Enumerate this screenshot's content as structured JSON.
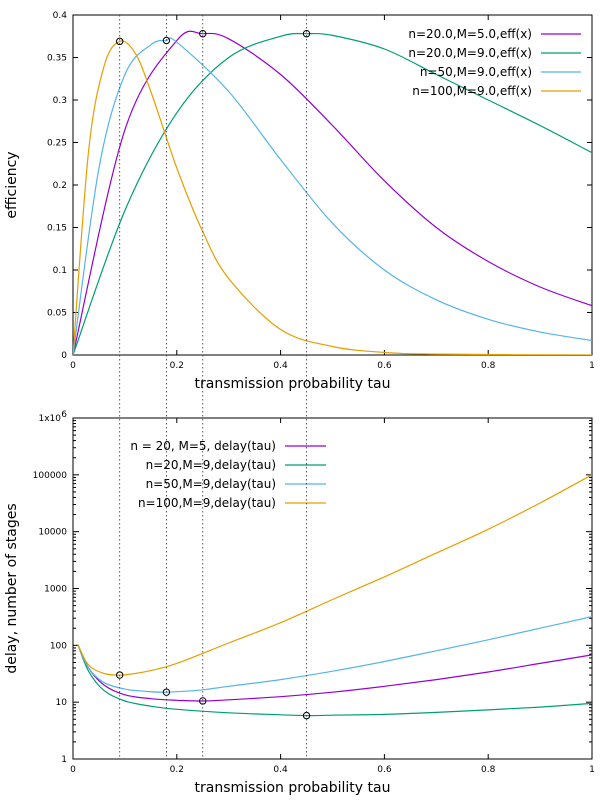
{
  "colors": {
    "purple": "#9400d3",
    "green": "#009e73",
    "cyan": "#56b4e9",
    "orange": "#e69f00"
  },
  "chart_data": [
    {
      "type": "line",
      "xlabel": "transmission probability tau",
      "ylabel": "efficiency",
      "xlim": [
        0,
        1
      ],
      "ylim": [
        0,
        0.4
      ],
      "xticks": [
        "0",
        "0.2",
        "0.4",
        "0.6",
        "0.8",
        "1"
      ],
      "yticks": [
        "0",
        "0.05",
        "0.1",
        "0.15",
        "0.2",
        "0.25",
        "0.3",
        "0.35",
        "0.4"
      ],
      "grid": false,
      "legend": "top-right",
      "series": [
        {
          "name": "n=20.0,M=5.0,eff(x)",
          "color": "purple",
          "x": [
            0,
            0.1,
            0.2,
            0.25,
            0.3,
            0.4,
            0.5,
            0.6,
            0.7,
            0.8,
            0.9,
            1
          ],
          "y": [
            0,
            0.265,
            0.37,
            0.378,
            0.372,
            0.33,
            0.27,
            0.205,
            0.15,
            0.11,
            0.08,
            0.058
          ]
        },
        {
          "name": "n=20.0,M=9.0,eff(x)",
          "color": "green",
          "x": [
            0,
            0.1,
            0.2,
            0.3,
            0.4,
            0.45,
            0.5,
            0.6,
            0.7,
            0.8,
            0.9,
            1
          ],
          "y": [
            0,
            0.17,
            0.285,
            0.35,
            0.375,
            0.378,
            0.376,
            0.36,
            0.33,
            0.3,
            0.27,
            0.238
          ]
        },
        {
          "name": "n=50,M=9.0,eff(x)",
          "color": "cyan",
          "x": [
            0,
            0.05,
            0.1,
            0.15,
            0.18,
            0.2,
            0.3,
            0.4,
            0.5,
            0.6,
            0.7,
            0.8,
            0.9,
            1
          ],
          "y": [
            0,
            0.22,
            0.33,
            0.365,
            0.37,
            0.368,
            0.31,
            0.23,
            0.155,
            0.1,
            0.065,
            0.042,
            0.027,
            0.017
          ]
        },
        {
          "name": "n=100,M=9.0,eff(x)",
          "color": "orange",
          "x": [
            0,
            0.03,
            0.06,
            0.09,
            0.12,
            0.15,
            0.2,
            0.25,
            0.3,
            0.4,
            0.5,
            0.6,
            0.7,
            1
          ],
          "y": [
            0,
            0.24,
            0.34,
            0.369,
            0.355,
            0.31,
            0.22,
            0.145,
            0.09,
            0.03,
            0.01,
            0.003,
            0.001,
            0
          ]
        }
      ],
      "markers": [
        {
          "x": 0.09,
          "y": 0.369
        },
        {
          "x": 0.18,
          "y": 0.37
        },
        {
          "x": 0.25,
          "y": 0.378
        },
        {
          "x": 0.45,
          "y": 0.378
        }
      ]
    },
    {
      "type": "line",
      "xlabel": "transmission probability tau",
      "ylabel": "delay, number of stages",
      "xlim": [
        0,
        1
      ],
      "ylim": [
        1,
        1000000
      ],
      "yscale": "log",
      "xticks": [
        "0",
        "0.2",
        "0.4",
        "0.6",
        "0.8",
        "1"
      ],
      "yticks": [
        "1",
        "10",
        "100",
        "1000",
        "10000",
        "100000",
        "1x10"
      ],
      "ytick_top_exponent": "6",
      "grid": false,
      "legend": "top-left",
      "series": [
        {
          "name": "n = 20, M=5, delay(tau)",
          "color": "purple",
          "x": [
            0.01,
            0.03,
            0.06,
            0.1,
            0.15,
            0.2,
            0.25,
            0.3,
            0.4,
            0.5,
            0.6,
            0.7,
            0.8,
            0.9,
            1
          ],
          "y": [
            100,
            40,
            20,
            13.5,
            11.5,
            10.8,
            10.5,
            11,
            12.5,
            15,
            19,
            25,
            34,
            48,
            68
          ]
        },
        {
          "name": "n=20,M=9,delay(tau)",
          "color": "green",
          "x": [
            0.01,
            0.03,
            0.06,
            0.1,
            0.15,
            0.2,
            0.3,
            0.4,
            0.45,
            0.5,
            0.6,
            0.7,
            0.8,
            0.9,
            1
          ],
          "y": [
            100,
            35,
            16,
            10.5,
            8.5,
            7.5,
            6.5,
            6,
            5.8,
            5.9,
            6.1,
            6.6,
            7.3,
            8.2,
            9.5
          ]
        },
        {
          "name": "n=50,M=9,delay(tau)",
          "color": "cyan",
          "x": [
            0.01,
            0.03,
            0.06,
            0.1,
            0.14,
            0.18,
            0.25,
            0.3,
            0.4,
            0.5,
            0.6,
            0.7,
            0.8,
            0.9,
            1
          ],
          "y": [
            100,
            40,
            22,
            17,
            15.5,
            15,
            16.5,
            19,
            25,
            35,
            52,
            80,
            125,
            200,
            320
          ]
        },
        {
          "name": "n=100,M=9,delay(tau)",
          "color": "orange",
          "x": [
            0.01,
            0.03,
            0.06,
            0.09,
            0.12,
            0.15,
            0.2,
            0.3,
            0.4,
            0.5,
            0.6,
            0.7,
            0.8,
            0.9,
            1
          ],
          "y": [
            100,
            45,
            32,
            30,
            32,
            36,
            48,
            110,
            250,
            640,
            1600,
            4200,
            11000,
            32000,
            100000
          ]
        }
      ],
      "markers": [
        {
          "x": 0.09,
          "y": 30
        },
        {
          "x": 0.18,
          "y": 15
        },
        {
          "x": 0.25,
          "y": 10.5
        },
        {
          "x": 0.45,
          "y": 5.8
        }
      ]
    }
  ],
  "guides": [
    0.09,
    0.18,
    0.25,
    0.45
  ]
}
